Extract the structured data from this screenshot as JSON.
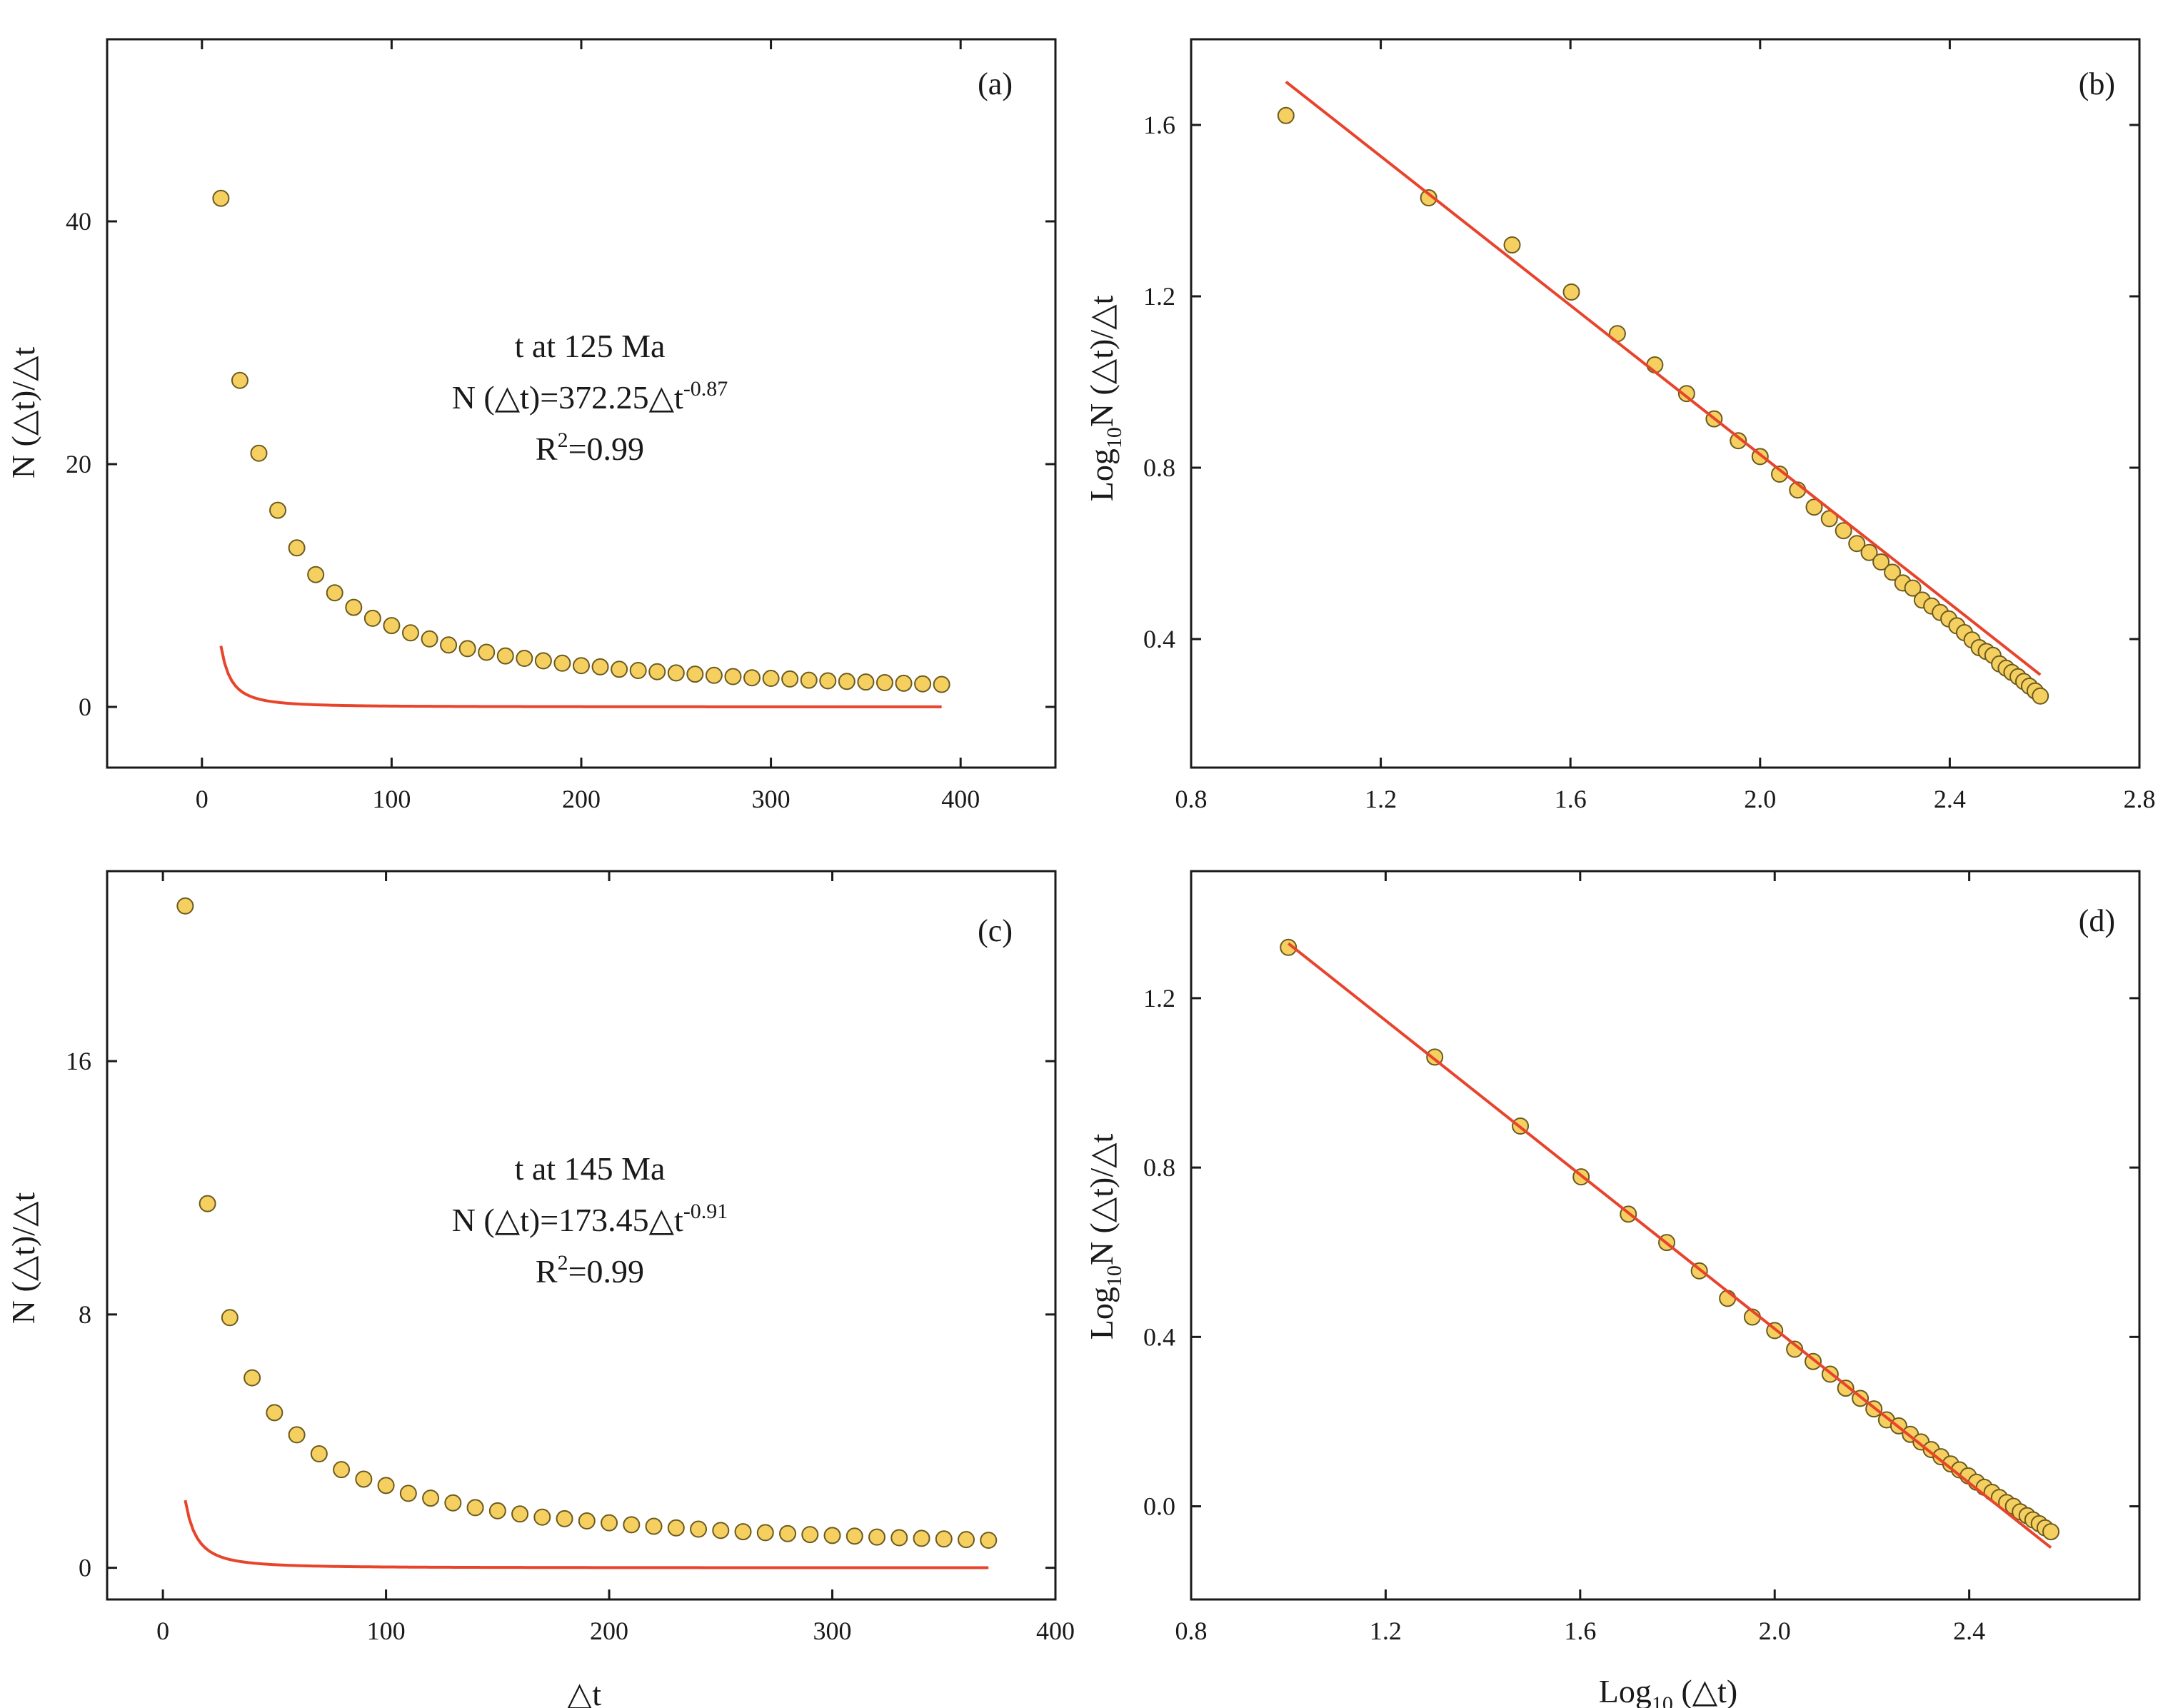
{
  "chart_data": [
    {
      "id": "a",
      "type": "scatter",
      "panel_label": "(a)",
      "xlabel": "",
      "ylabel": "N (△t)/△t",
      "xlim": [
        -50,
        450
      ],
      "ylim": [
        -5,
        55
      ],
      "xticks": [
        0,
        100,
        200,
        300,
        400
      ],
      "xtick_labels": [
        "0",
        "100",
        "200",
        "300",
        "400"
      ],
      "yticks": [
        0,
        20,
        40
      ],
      "ytick_labels": [
        "0",
        "20",
        "40"
      ],
      "annotation": {
        "line1": "t at 125 Ma",
        "eq_base": "N (△t)=372.25△t",
        "eq_exp": "-0.87",
        "r2_base": "R",
        "r2_sup": "2",
        "r2_rest": "=0.99"
      },
      "fit": {
        "model": "power",
        "coef": 372.25,
        "exp": -0.87,
        "range": [
          10,
          390
        ],
        "color": "#e8442c"
      },
      "series": [
        {
          "name": "observed",
          "marker_color": "#f5d060",
          "x": [
            10,
            20,
            30,
            40,
            50,
            60,
            70,
            80,
            90,
            100,
            110,
            120,
            130,
            140,
            150,
            160,
            170,
            180,
            190,
            200,
            210,
            220,
            230,
            240,
            250,
            260,
            270,
            280,
            290,
            300,
            310,
            320,
            330,
            340,
            350,
            360,
            370,
            380,
            390
          ],
          "y": [
            41.9,
            26.9,
            20.9,
            16.2,
            13.1,
            10.9,
            9.4,
            8.2,
            7.3,
            6.7,
            6.1,
            5.6,
            5.1,
            4.8,
            4.5,
            4.2,
            4.0,
            3.8,
            3.6,
            3.4,
            3.3,
            3.1,
            3.0,
            2.9,
            2.8,
            2.7,
            2.6,
            2.5,
            2.4,
            2.35,
            2.3,
            2.2,
            2.15,
            2.1,
            2.05,
            2.0,
            1.95,
            1.9,
            1.85
          ]
        }
      ]
    },
    {
      "id": "b",
      "type": "scatter",
      "panel_label": "(b)",
      "xlabel": "",
      "ylabel": "Log₁₀N (△t)/△t",
      "ylabel_parts": [
        "Log",
        "10",
        "N (△t)/△t"
      ],
      "xlim": [
        0.8,
        2.8
      ],
      "ylim": [
        0.1,
        1.8
      ],
      "xticks": [
        0.8,
        1.2,
        1.6,
        2.0,
        2.4,
        2.8
      ],
      "xtick_labels": [
        "0.8",
        "1.2",
        "1.6",
        "2.0",
        "2.4",
        "2.8"
      ],
      "yticks": [
        0.4,
        0.8,
        1.2,
        1.6
      ],
      "ytick_labels": [
        "0.4",
        "0.8",
        "1.2",
        "1.6"
      ],
      "fit": {
        "model": "linear",
        "intercept": 2.5708,
        "slope": -0.87,
        "range": [
          1.0,
          2.591
        ],
        "color": "#e8442c"
      },
      "series": [
        {
          "name": "observed",
          "marker_color": "#f5d060",
          "x": [
            1.0,
            1.301,
            1.477,
            1.602,
            1.699,
            1.778,
            1.845,
            1.903,
            1.954,
            2.0,
            2.041,
            2.079,
            2.114,
            2.146,
            2.176,
            2.204,
            2.23,
            2.255,
            2.279,
            2.301,
            2.322,
            2.342,
            2.362,
            2.38,
            2.398,
            2.415,
            2.431,
            2.447,
            2.462,
            2.477,
            2.491,
            2.505,
            2.519,
            2.531,
            2.544,
            2.556,
            2.568,
            2.58,
            2.591
          ],
          "y": [
            1.622,
            1.43,
            1.32,
            1.21,
            1.113,
            1.04,
            0.973,
            0.914,
            0.863,
            0.826,
            0.785,
            0.748,
            0.708,
            0.681,
            0.653,
            0.623,
            0.602,
            0.58,
            0.556,
            0.531,
            0.519,
            0.491,
            0.477,
            0.462,
            0.447,
            0.431,
            0.415,
            0.398,
            0.38,
            0.371,
            0.362,
            0.342,
            0.332,
            0.322,
            0.312,
            0.301,
            0.29,
            0.279,
            0.267
          ]
        }
      ]
    },
    {
      "id": "c",
      "type": "scatter",
      "panel_label": "(c)",
      "xlabel": "△t",
      "ylabel": "N (△t)/△t",
      "xlim": [
        -25,
        400
      ],
      "ylim": [
        -1,
        22
      ],
      "xticks": [
        0,
        100,
        200,
        300,
        400
      ],
      "xtick_labels": [
        "0",
        "100",
        "200",
        "300",
        "400"
      ],
      "yticks": [
        0,
        8,
        16
      ],
      "ytick_labels": [
        "0",
        "8",
        "16"
      ],
      "annotation": {
        "line1": "t at 145 Ma",
        "eq_base": "N (△t)=173.45△t",
        "eq_exp": "-0.91",
        "r2_base": "R",
        "r2_sup": "2",
        "r2_rest": "=0.99"
      },
      "fit": {
        "model": "power",
        "coef": 173.45,
        "exp": -0.91,
        "range": [
          10,
          370
        ],
        "color": "#e8442c"
      },
      "series": [
        {
          "name": "observed",
          "marker_color": "#f5d060",
          "x": [
            10,
            20,
            30,
            40,
            50,
            60,
            70,
            80,
            90,
            100,
            110,
            120,
            130,
            140,
            150,
            160,
            170,
            180,
            190,
            200,
            210,
            220,
            230,
            240,
            250,
            260,
            270,
            280,
            290,
            300,
            310,
            320,
            330,
            340,
            350,
            360,
            370
          ],
          "y": [
            20.9,
            11.5,
            7.9,
            6.0,
            4.9,
            4.2,
            3.6,
            3.1,
            2.8,
            2.6,
            2.35,
            2.2,
            2.05,
            1.9,
            1.8,
            1.7,
            1.6,
            1.55,
            1.48,
            1.42,
            1.36,
            1.31,
            1.26,
            1.22,
            1.18,
            1.14,
            1.11,
            1.08,
            1.05,
            1.02,
            1.0,
            0.97,
            0.95,
            0.93,
            0.91,
            0.89,
            0.87
          ]
        }
      ]
    },
    {
      "id": "d",
      "type": "scatter",
      "panel_label": "(d)",
      "xlabel": "Log₁₀ (△t)",
      "xlabel_parts": [
        "Log",
        "10",
        " (△t)"
      ],
      "ylabel": "Log₁₀N (△t)/△t",
      "ylabel_parts": [
        "Log",
        "10",
        "N (△t)/△t"
      ],
      "xlim": [
        0.8,
        2.75
      ],
      "ylim": [
        -0.22,
        1.5
      ],
      "xticks": [
        0.8,
        1.2,
        1.6,
        2.0,
        2.4
      ],
      "xtick_labels": [
        "0.8",
        "1.2",
        "1.6",
        "2.0",
        "2.4"
      ],
      "yticks": [
        0.0,
        0.4,
        0.8,
        1.2
      ],
      "ytick_labels": [
        "0.0",
        "0.4",
        "0.8",
        "1.2"
      ],
      "fit": {
        "model": "linear",
        "intercept": 2.2392,
        "slope": -0.91,
        "range": [
          1.0,
          2.568
        ],
        "color": "#e8442c"
      },
      "series": [
        {
          "name": "observed",
          "marker_color": "#f5d060",
          "x": [
            1.0,
            1.301,
            1.477,
            1.602,
            1.699,
            1.778,
            1.845,
            1.903,
            1.954,
            2.0,
            2.041,
            2.079,
            2.114,
            2.146,
            2.176,
            2.204,
            2.23,
            2.255,
            2.279,
            2.301,
            2.322,
            2.342,
            2.362,
            2.38,
            2.398,
            2.415,
            2.431,
            2.447,
            2.462,
            2.477,
            2.491,
            2.505,
            2.519,
            2.531,
            2.544,
            2.556,
            2.568
          ],
          "y": [
            1.32,
            1.061,
            0.898,
            0.778,
            0.69,
            0.623,
            0.556,
            0.491,
            0.447,
            0.415,
            0.371,
            0.342,
            0.312,
            0.279,
            0.255,
            0.23,
            0.204,
            0.19,
            0.17,
            0.152,
            0.134,
            0.117,
            0.1,
            0.086,
            0.072,
            0.057,
            0.045,
            0.033,
            0.021,
            0.009,
            0.0,
            -0.013,
            -0.022,
            -0.032,
            -0.041,
            -0.051,
            -0.06
          ]
        }
      ]
    }
  ]
}
